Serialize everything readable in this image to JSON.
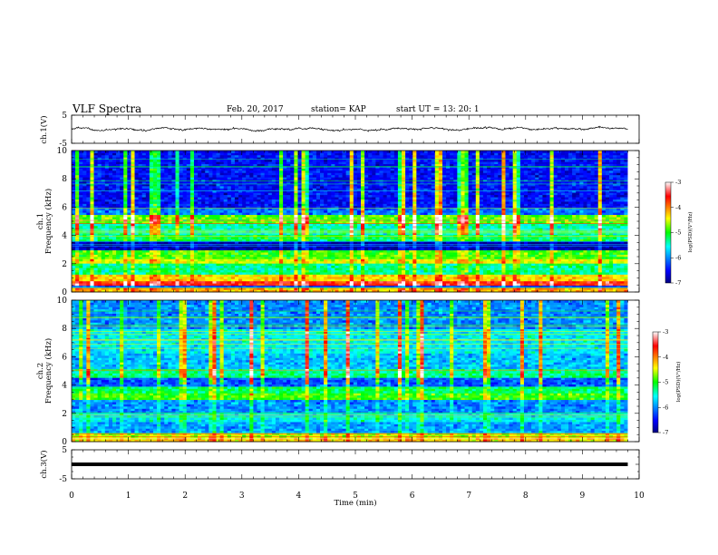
{
  "header": {
    "title": "VLF Spectra",
    "date": "Feb. 20, 2017",
    "station": "station= KAP",
    "start": "start  UT =   13: 20: 1"
  },
  "chart_data": [
    {
      "type": "line",
      "name": "ch1-waveform",
      "ylabel": "ch.1(V)",
      "ylim": [
        -5,
        5
      ],
      "yticks": [
        5,
        -5
      ],
      "xlim": [
        0,
        10
      ],
      "x_end": 9.8,
      "amplitude_range": [
        -1,
        1
      ]
    },
    {
      "type": "heatmap",
      "name": "ch1-spectrogram",
      "ylabel_lines": [
        "ch.1",
        "Frequency (kHz)"
      ],
      "ylim": [
        0,
        10
      ],
      "yticks": [
        0,
        2,
        4,
        6,
        8,
        10
      ],
      "xlim": [
        0,
        10
      ],
      "x_end": 9.8,
      "colorbar": {
        "label": "log(PSD)(V²/Hz)",
        "ticks": [
          "-3",
          "-4",
          "-5",
          "-6",
          "-7"
        ],
        "range": [
          -7,
          -3
        ]
      },
      "bands": [
        {
          "f": [
            0.0,
            0.25
          ],
          "level": -4.2
        },
        {
          "f": [
            0.5,
            0.8
          ],
          "level": -3.6
        },
        {
          "f": [
            0.8,
            1.3
          ],
          "level": -4.3
        },
        {
          "f": [
            1.3,
            2.0
          ],
          "level": -5.3
        },
        {
          "f": [
            2.0,
            2.4
          ],
          "level": -4.5
        },
        {
          "f": [
            2.4,
            3.0
          ],
          "level": -4.9
        },
        {
          "f": [
            3.0,
            3.6
          ],
          "level": -6.8
        },
        {
          "f": [
            3.6,
            4.1
          ],
          "level": -5.2
        },
        {
          "f": [
            4.1,
            4.8
          ],
          "level": -5.4
        },
        {
          "f": [
            4.8,
            5.4
          ],
          "level": -4.8
        },
        {
          "f": [
            5.4,
            6.0
          ],
          "level": -6.1
        },
        {
          "f": [
            6.0,
            10.0
          ],
          "level": -6.5
        }
      ]
    },
    {
      "type": "heatmap",
      "name": "ch2-spectrogram",
      "ylabel_lines": [
        "ch.2",
        "Frequency (kHz)"
      ],
      "ylim": [
        0,
        10
      ],
      "yticks": [
        0,
        2,
        4,
        6,
        8,
        10
      ],
      "xlim": [
        0,
        10
      ],
      "x_end": 9.8,
      "colorbar": {
        "label": "log(PSD)(V²/Hz)",
        "ticks": [
          "-3",
          "-4",
          "-5",
          "-6",
          "-7"
        ],
        "range": [
          -7,
          -3
        ]
      },
      "bands": [
        {
          "f": [
            0.0,
            0.3
          ],
          "level": -4.3
        },
        {
          "f": [
            0.3,
            0.7
          ],
          "level": -4.6
        },
        {
          "f": [
            0.7,
            1.4
          ],
          "level": -5.9
        },
        {
          "f": [
            1.4,
            2.0
          ],
          "level": -5.6
        },
        {
          "f": [
            2.0,
            3.0
          ],
          "level": -6.0
        },
        {
          "f": [
            3.0,
            3.4
          ],
          "level": -4.9
        },
        {
          "f": [
            3.4,
            3.9
          ],
          "level": -5.2
        },
        {
          "f": [
            3.9,
            4.5
          ],
          "level": -6.2
        },
        {
          "f": [
            4.5,
            5.2
          ],
          "level": -5.3
        },
        {
          "f": [
            5.2,
            6.3
          ],
          "level": -5.8
        },
        {
          "f": [
            6.3,
            8.0
          ],
          "level": -5.6
        },
        {
          "f": [
            8.0,
            10.0
          ],
          "level": -6.0
        }
      ]
    },
    {
      "type": "line",
      "name": "ch3-waveform",
      "ylabel": "ch.3(V)",
      "ylim": [
        -5,
        5
      ],
      "yticks": [
        5,
        0,
        -5
      ],
      "xlim": [
        0,
        10
      ],
      "x_end": 9.8,
      "constant_value": 0
    }
  ],
  "xaxis": {
    "label": "Time (min)",
    "ticks": [
      "0",
      "1",
      "2",
      "3",
      "4",
      "5",
      "6",
      "7",
      "8",
      "9",
      "10"
    ]
  }
}
